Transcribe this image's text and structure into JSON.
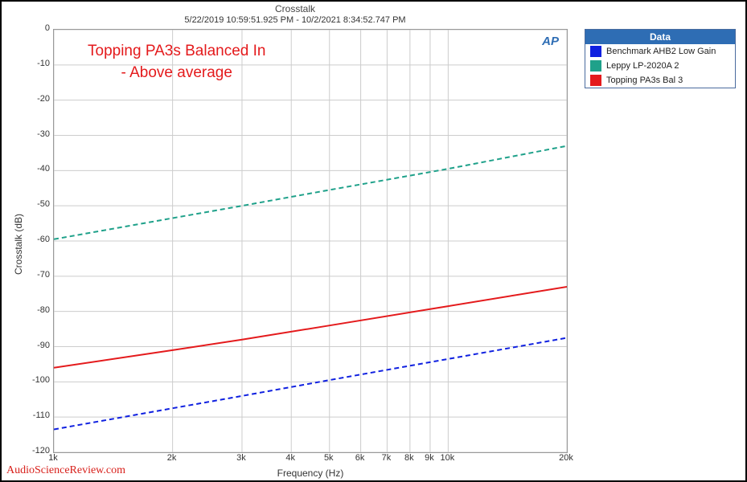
{
  "chart": {
    "title": "Crosstalk",
    "timestamp": "5/22/2019 10:59:51.925 PM - 10/2/2021 8:34:52.747 PM",
    "annotation_line1": "Topping PA3s Balanced In",
    "annotation_line2": "- Above average",
    "annotation_color": "#e41a1c",
    "annotation_fontsize": 19,
    "ap_logo": "AP",
    "background_color": "#ffffff",
    "grid_color": "#cccccc",
    "border_color": "#999999",
    "x_axis": {
      "title": "Frequency (Hz)",
      "scale": "log",
      "min": 1000,
      "max": 20000,
      "ticks": [
        1000,
        2000,
        3000,
        4000,
        5000,
        6000,
        7000,
        8000,
        9000,
        10000,
        20000
      ],
      "tick_labels": [
        "1k",
        "2k",
        "3k",
        "4k",
        "5k",
        "6k",
        "7k",
        "8k",
        "9k",
        "10k",
        "20k"
      ]
    },
    "y_axis": {
      "title": "Crosstalk (dB)",
      "scale": "linear",
      "min": -120,
      "max": 0,
      "ticks": [
        0,
        -10,
        -20,
        -30,
        -40,
        -50,
        -60,
        -70,
        -80,
        -90,
        -100,
        -110,
        -120
      ],
      "tick_labels": [
        "0",
        "-10",
        "-20",
        "-30",
        "-40",
        "-50",
        "-60",
        "-70",
        "-80",
        "-90",
        "-100",
        "-110",
        "-120"
      ]
    },
    "series": [
      {
        "name": "Benchmark AHB2 Low Gain",
        "legend_label": "Benchmark AHB2 Low Gain",
        "color": "#1021e0",
        "dash": "6,4",
        "width": 2,
        "points": [
          {
            "x": 1000,
            "y": -113.5
          },
          {
            "x": 2000,
            "y": -107.5
          },
          {
            "x": 3000,
            "y": -104
          },
          {
            "x": 5000,
            "y": -99.5
          },
          {
            "x": 10000,
            "y": -93.5
          },
          {
            "x": 20000,
            "y": -87.5
          }
        ]
      },
      {
        "name": "Leppy LP-2020A 2",
        "legend_label": "Leppy LP-2020A  2",
        "color": "#1fa18a",
        "dash": "6,4",
        "width": 2,
        "points": [
          {
            "x": 1000,
            "y": -59.5
          },
          {
            "x": 2000,
            "y": -53.5
          },
          {
            "x": 3000,
            "y": -50
          },
          {
            "x": 5000,
            "y": -45.5
          },
          {
            "x": 10000,
            "y": -39.5
          },
          {
            "x": 20000,
            "y": -33
          }
        ]
      },
      {
        "name": "Topping PA3s Bal 3",
        "legend_label": "Topping PA3s Bal  3",
        "color": "#e41a1c",
        "dash": "",
        "width": 2.2,
        "points": [
          {
            "x": 1000,
            "y": -96
          },
          {
            "x": 2000,
            "y": -91
          },
          {
            "x": 3000,
            "y": -88
          },
          {
            "x": 5000,
            "y": -84
          },
          {
            "x": 10000,
            "y": -78.5
          },
          {
            "x": 20000,
            "y": -73
          }
        ]
      }
    ]
  },
  "legend": {
    "header": "Data"
  },
  "watermark": "AudioScienceReview.com"
}
